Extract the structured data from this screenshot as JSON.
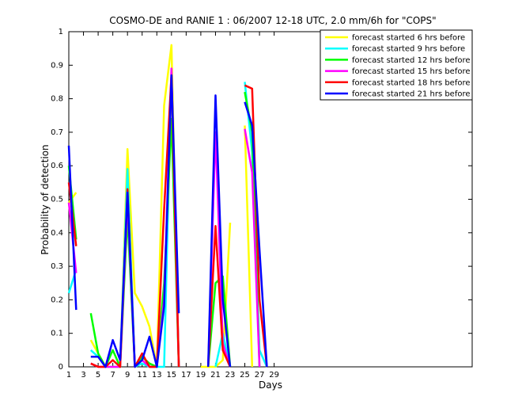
{
  "chart_data": {
    "type": "line",
    "title": "COSMO-DE and RANIE 1 : 06/2007 12-18 UTC, 2.0 mm/6h for \"COPS\"",
    "xlabel": "Days",
    "ylabel": "Probability of detection",
    "xlim": [
      1,
      56
    ],
    "ylim": [
      0,
      1
    ],
    "xticks": [
      1,
      3,
      5,
      7,
      9,
      11,
      13,
      15,
      17,
      19,
      21,
      23,
      25,
      27,
      29
    ],
    "yticks": [
      0,
      0.1,
      0.2,
      0.3,
      0.4,
      0.5,
      0.6,
      0.7,
      0.8,
      0.9,
      1
    ],
    "legend_position": "top-right",
    "grid": false,
    "series": [
      {
        "name": "forecast started 6 hrs before",
        "color": "#ffff00",
        "segments": [
          [
            [
              1,
              0.49
            ],
            [
              2,
              0.52
            ]
          ],
          [
            [
              4,
              0.08
            ],
            [
              5,
              0.04
            ],
            [
              6,
              0.0
            ],
            [
              7,
              0.0
            ],
            [
              8,
              0.0
            ],
            [
              9,
              0.65
            ],
            [
              10,
              0.22
            ],
            [
              11,
              0.18
            ],
            [
              12,
              0.12
            ],
            [
              13,
              0.0
            ],
            [
              14,
              0.78
            ],
            [
              15,
              0.96
            ],
            [
              16,
              0.0
            ]
          ],
          [
            [
              19,
              0.0
            ],
            [
              20,
              0.0
            ],
            [
              21,
              0.0
            ],
            [
              22,
              0.02
            ],
            [
              23,
              0.43
            ]
          ],
          [
            [
              25,
              0.72
            ],
            [
              26,
              0.0
            ]
          ]
        ]
      },
      {
        "name": "forecast started 9 hrs before",
        "color": "#00ffff",
        "segments": [
          [
            [
              1,
              0.22
            ],
            [
              2,
              0.29
            ]
          ],
          [
            [
              4,
              0.05
            ],
            [
              5,
              0.03
            ],
            [
              6,
              0.0
            ],
            [
              7,
              0.0
            ],
            [
              8,
              0.0
            ],
            [
              9,
              0.59
            ],
            [
              10,
              0.0
            ],
            [
              11,
              0.01
            ],
            [
              12,
              0.0
            ],
            [
              13,
              0.0
            ],
            [
              14,
              0.0
            ],
            [
              15,
              0.88
            ],
            [
              16,
              0.0
            ]
          ],
          [
            [
              21,
              0.0
            ],
            [
              22,
              0.1
            ],
            [
              23,
              0.0
            ]
          ],
          [
            [
              25,
              0.85
            ],
            [
              26,
              0.64
            ],
            [
              27,
              0.05
            ],
            [
              28,
              0.0
            ]
          ]
        ]
      },
      {
        "name": "forecast started 12 hrs before",
        "color": "#00ff00",
        "segments": [
          [
            [
              1,
              0.6
            ],
            [
              2,
              0.38
            ]
          ],
          [
            [
              4,
              0.16
            ],
            [
              5,
              0.04
            ],
            [
              6,
              0.0
            ],
            [
              7,
              0.05
            ],
            [
              8,
              0.0
            ],
            [
              9,
              0.45
            ],
            [
              10,
              0.0
            ],
            [
              11,
              0.03
            ],
            [
              12,
              0.01
            ],
            [
              13,
              0.0
            ],
            [
              14,
              0.25
            ],
            [
              15,
              0.74
            ],
            [
              16,
              0.0
            ]
          ],
          [
            [
              20,
              0.0
            ],
            [
              21,
              0.25
            ],
            [
              22,
              0.27
            ],
            [
              23,
              0.0
            ]
          ],
          [
            [
              25,
              0.82
            ],
            [
              26,
              0.7
            ],
            [
              27,
              0.0
            ]
          ]
        ]
      },
      {
        "name": "forecast started 15 hrs before",
        "color": "#ff00ff",
        "segments": [
          [
            [
              1,
              0.49
            ],
            [
              2,
              0.28
            ]
          ],
          [
            [
              4,
              0.01
            ],
            [
              5,
              0.0
            ],
            [
              6,
              0.0
            ],
            [
              7,
              0.0
            ],
            [
              8,
              0.0
            ],
            [
              9,
              0.5
            ],
            [
              10,
              0.0
            ],
            [
              11,
              0.02
            ],
            [
              12,
              0.0
            ],
            [
              13,
              0.0
            ],
            [
              14,
              0.2
            ],
            [
              15,
              0.89
            ],
            [
              16,
              0.0
            ]
          ],
          [
            [
              20,
              0.0
            ],
            [
              21,
              0.7
            ],
            [
              22,
              0.07
            ],
            [
              23,
              0.0
            ]
          ],
          [
            [
              25,
              0.71
            ],
            [
              26,
              0.58
            ],
            [
              27,
              0.0
            ]
          ]
        ]
      },
      {
        "name": "forecast started 18 hrs before",
        "color": "#ff0000",
        "segments": [
          [
            [
              1,
              0.55
            ],
            [
              2,
              0.36
            ]
          ],
          [
            [
              4,
              0.01
            ],
            [
              5,
              0.0
            ],
            [
              6,
              0.0
            ],
            [
              7,
              0.02
            ],
            [
              8,
              0.0
            ],
            [
              9,
              0.53
            ],
            [
              10,
              0.0
            ],
            [
              11,
              0.04
            ],
            [
              12,
              0.0
            ],
            [
              13,
              0.0
            ],
            [
              14,
              0.47
            ],
            [
              15,
              0.87
            ],
            [
              16,
              0.0
            ]
          ],
          [
            [
              20,
              0.0
            ],
            [
              21,
              0.42
            ],
            [
              22,
              0.05
            ],
            [
              23,
              0.0
            ]
          ],
          [
            [
              25,
              0.84
            ],
            [
              26,
              0.83
            ],
            [
              27,
              0.2
            ],
            [
              28,
              0.0
            ]
          ]
        ]
      },
      {
        "name": "forecast started 21 hrs before",
        "color": "#0000ff",
        "segments": [
          [
            [
              1,
              0.66
            ],
            [
              2,
              0.17
            ]
          ],
          [
            [
              4,
              0.03
            ],
            [
              5,
              0.03
            ],
            [
              6,
              0.0
            ],
            [
              7,
              0.08
            ],
            [
              8,
              0.02
            ],
            [
              9,
              0.52
            ],
            [
              10,
              0.0
            ],
            [
              11,
              0.02
            ],
            [
              12,
              0.09
            ],
            [
              13,
              0.0
            ],
            [
              14,
              0.18
            ],
            [
              15,
              0.87
            ],
            [
              16,
              0.16
            ]
          ],
          [
            [
              20,
              0.0
            ],
            [
              21,
              0.81
            ],
            [
              22,
              0.2
            ],
            [
              23,
              0.0
            ]
          ],
          [
            [
              25,
              0.79
            ],
            [
              26,
              0.72
            ],
            [
              27,
              0.35
            ],
            [
              28,
              0.0
            ]
          ]
        ]
      }
    ]
  }
}
